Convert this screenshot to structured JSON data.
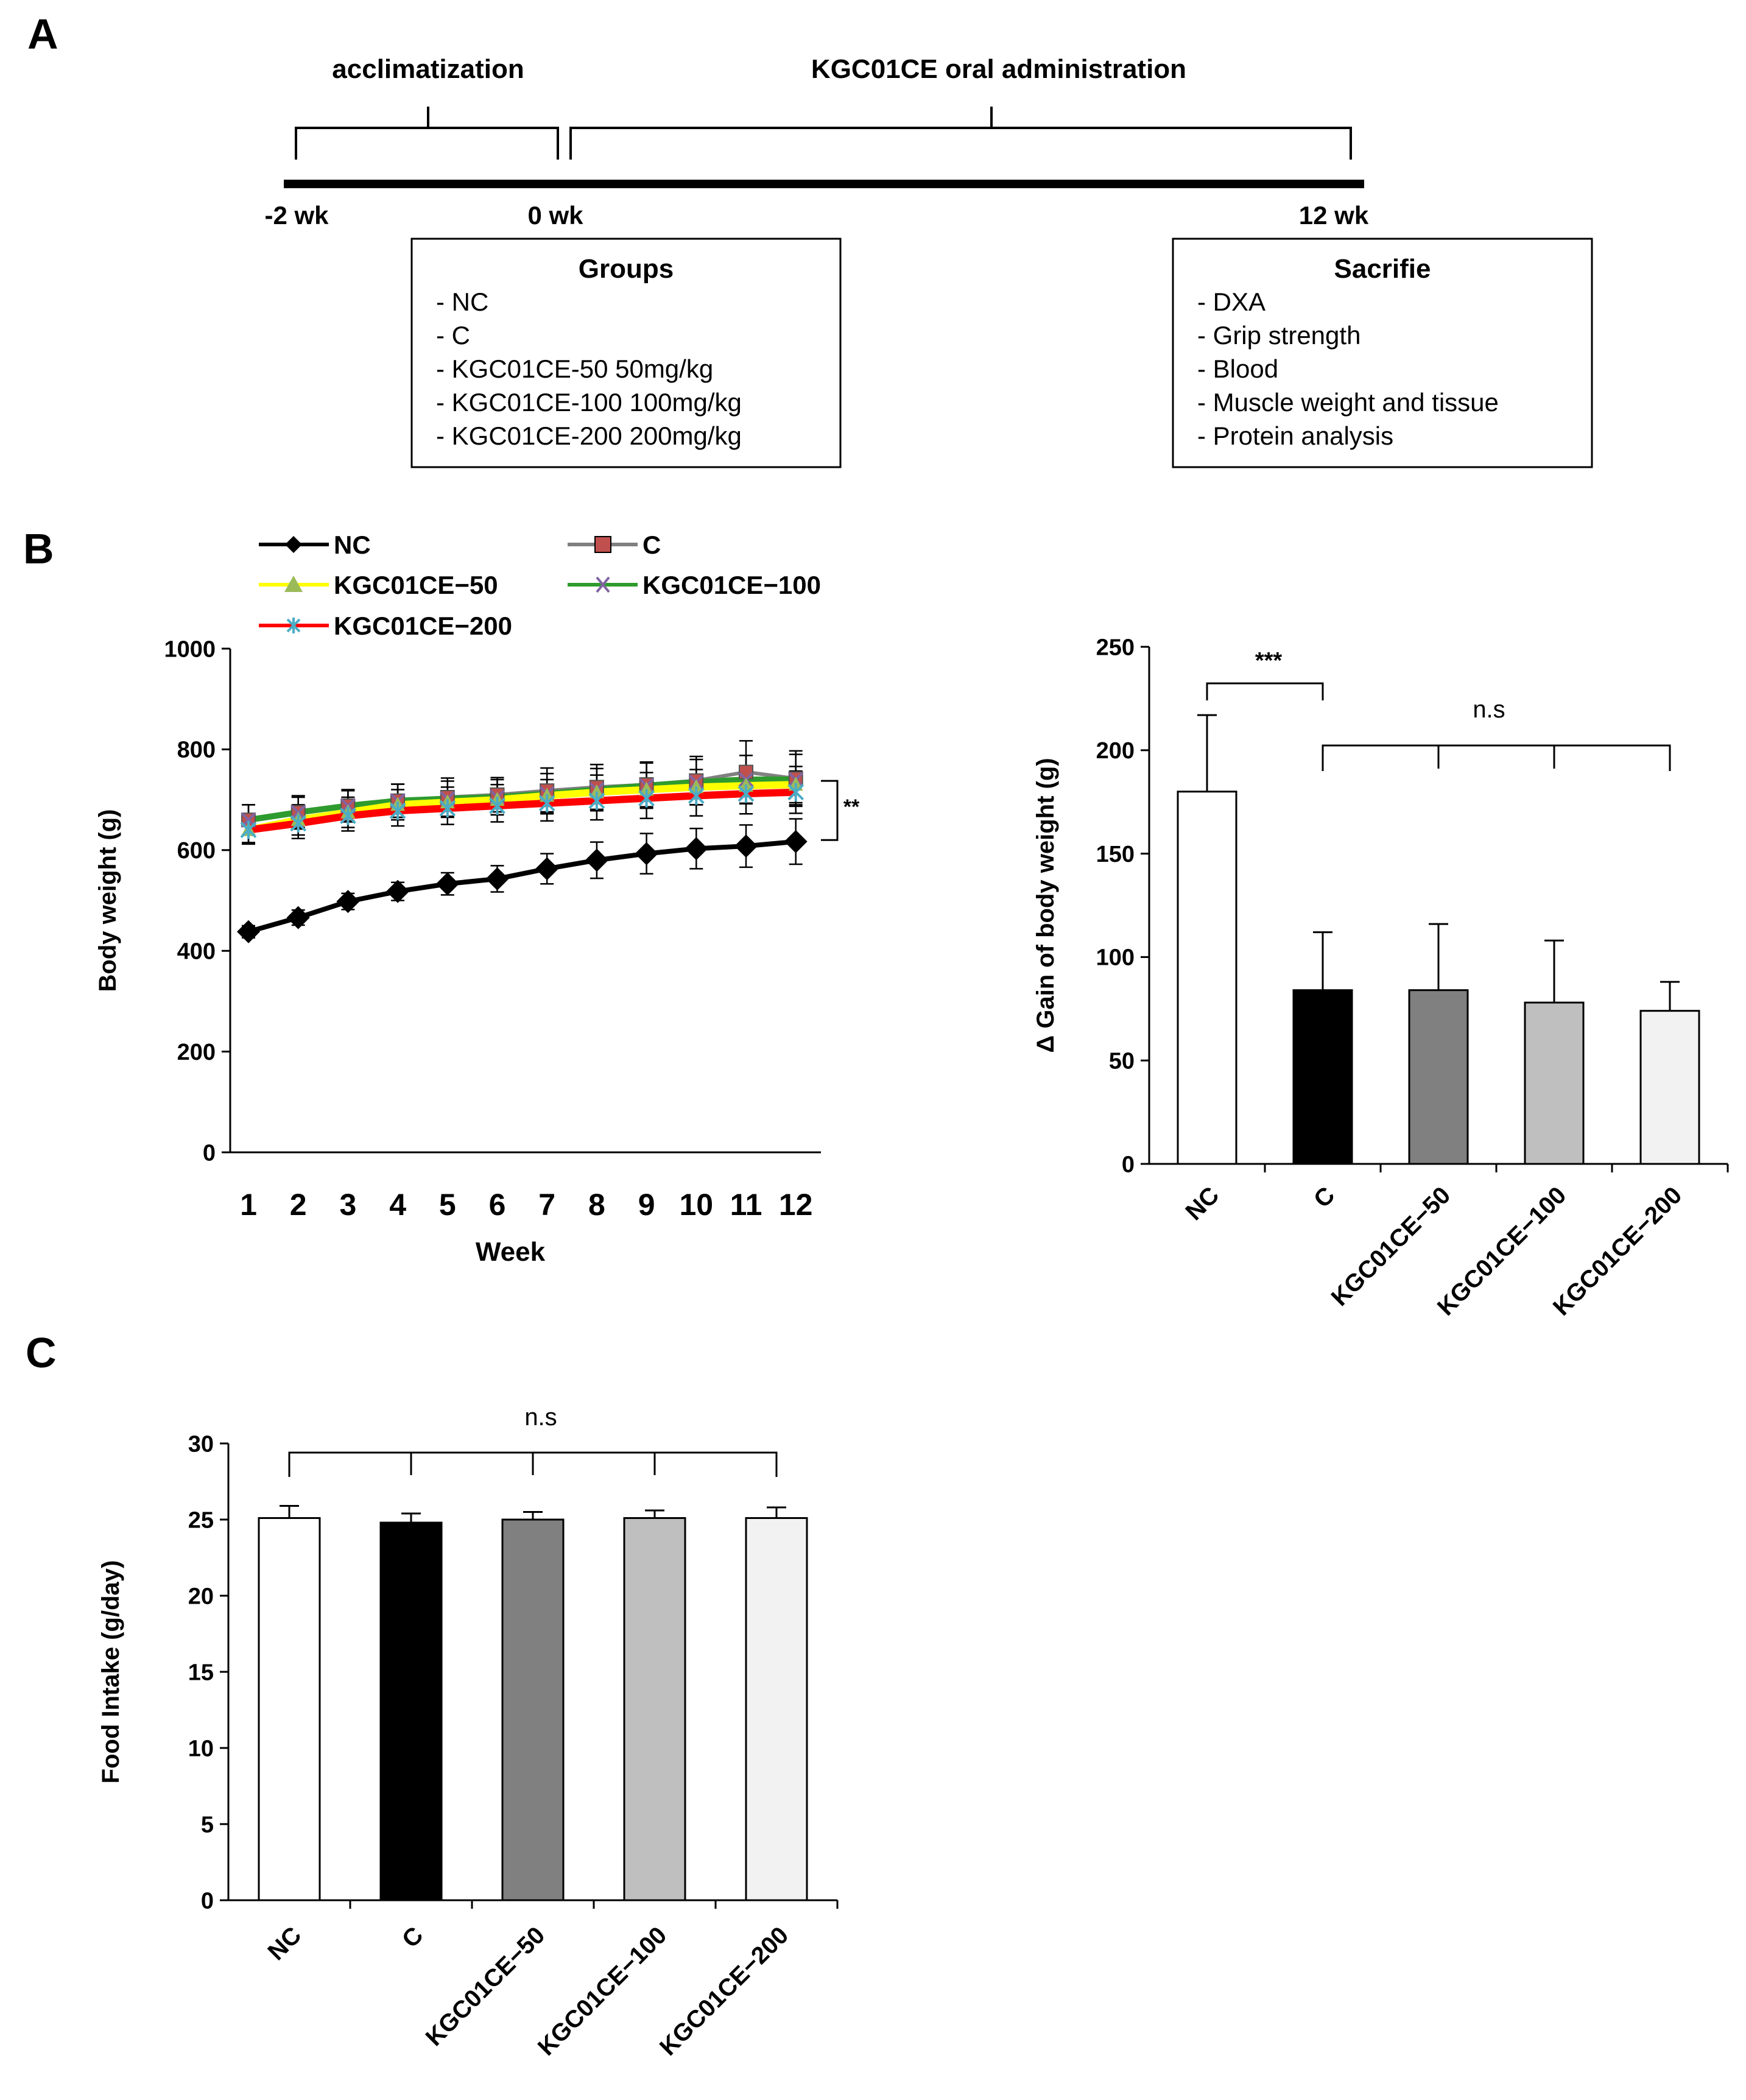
{
  "panels": {
    "a": "A",
    "b": "B",
    "c": "C"
  },
  "timeline": {
    "phase1": "acclimatization",
    "phase2": "KGC01CE oral administration",
    "ticks": [
      "-2 wk",
      "0 wk",
      "12 wk"
    ],
    "groups_title": "Groups",
    "groups": [
      "- NC",
      "- C",
      "- KGC01CE-50 50mg/kg",
      "- KGC01CE-100 100mg/kg",
      "- KGC01CE-200 200mg/kg"
    ],
    "sacrifice_title": "Sacrifie",
    "sacrifice": [
      "- DXA",
      "- Grip strength",
      "- Blood",
      "- Muscle weight and tissue",
      "- Protein analysis"
    ]
  },
  "colors": {
    "nc": "#000000",
    "c": "#808080",
    "c_marker": "#C0504D",
    "k50": "#FFFF00",
    "k50_marker": "#9BBB59",
    "k100": "#2E9B2E",
    "k100_marker": "#8064A2",
    "k200": "#FF0000",
    "k200_marker": "#4BACC6",
    "bar_nc": "#FFFFFF",
    "bar_c": "#000000",
    "bar_k50": "#808080",
    "bar_k100": "#BFBFBF",
    "bar_k200": "#F2F2F2"
  },
  "chart_data": [
    {
      "type": "line",
      "ylabel": "Body weight (g)",
      "xlabel": "Week",
      "ylim": [
        0,
        1000
      ],
      "yticks": [
        0,
        200,
        400,
        600,
        800,
        1000
      ],
      "x": [
        1,
        2,
        3,
        4,
        5,
        6,
        7,
        8,
        9,
        10,
        11,
        12
      ],
      "series": [
        {
          "name": "NC",
          "values": [
            438,
            466,
            498,
            518,
            533,
            543,
            563,
            580,
            593,
            603,
            608,
            617
          ],
          "err": [
            12,
            15,
            16,
            18,
            22,
            26,
            30,
            36,
            40,
            40,
            42,
            45
          ]
        },
        {
          "name": "C",
          "values": [
            660,
            675,
            688,
            698,
            705,
            710,
            718,
            725,
            730,
            738,
            755,
            742
          ],
          "err": [
            30,
            30,
            30,
            33,
            38,
            34,
            45,
            45,
            45,
            48,
            62,
            55
          ]
        },
        {
          "name": "KGC01CE−50",
          "values": [
            640,
            660,
            675,
            690,
            695,
            700,
            708,
            715,
            720,
            725,
            728,
            730
          ],
          "err": [
            28,
            30,
            30,
            30,
            30,
            30,
            32,
            34,
            34,
            35,
            35,
            36
          ]
        },
        {
          "name": "KGC01CE−100",
          "values": [
            660,
            675,
            688,
            698,
            702,
            705,
            712,
            720,
            728,
            735,
            740,
            740
          ],
          "err": [
            30,
            33,
            32,
            33,
            35,
            35,
            40,
            42,
            45,
            45,
            48,
            50
          ]
        },
        {
          "name": "KGC01CE−200",
          "values": [
            640,
            653,
            668,
            678,
            683,
            688,
            693,
            698,
            703,
            708,
            712,
            715
          ],
          "err": [
            25,
            30,
            30,
            30,
            32,
            32,
            35,
            38,
            40,
            40,
            40,
            42
          ]
        }
      ],
      "annotation": "**"
    },
    {
      "type": "bar",
      "ylabel": "Δ Gain of body weight (g)",
      "ylim": [
        0,
        250
      ],
      "yticks": [
        0,
        50,
        100,
        150,
        200,
        250
      ],
      "categories": [
        "NC",
        "C",
        "KGC01CE−50",
        "KGC01CE−100",
        "KGC01CE−200"
      ],
      "values": [
        180,
        84,
        84,
        78,
        74
      ],
      "err": [
        37,
        28,
        32,
        30,
        14
      ],
      "annotations": [
        "***",
        "n.s"
      ]
    },
    {
      "type": "bar",
      "ylabel": "Food Intake (g/day)",
      "ylim": [
        0,
        30
      ],
      "yticks": [
        0,
        5,
        10,
        15,
        20,
        25,
        30
      ],
      "categories": [
        "NC",
        "C",
        "KGC01CE−50",
        "KGC01CE−100",
        "KGC01CE−200"
      ],
      "values": [
        25.1,
        24.8,
        25.0,
        25.1,
        25.1
      ],
      "err": [
        0.8,
        0.6,
        0.5,
        0.5,
        0.7
      ],
      "annotations": [
        "n.s"
      ]
    }
  ]
}
